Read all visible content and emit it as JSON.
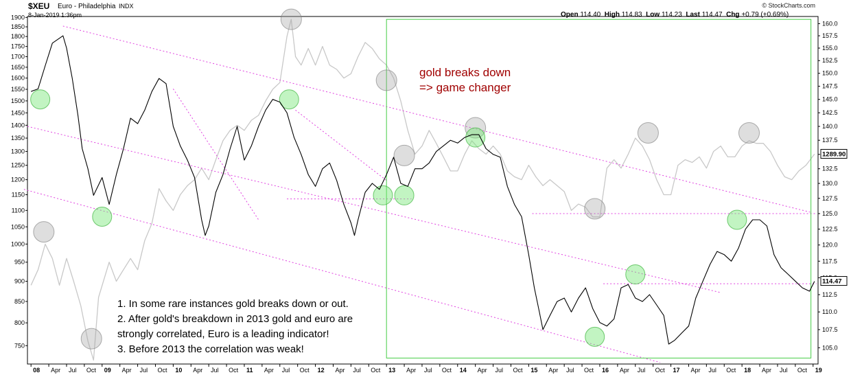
{
  "header": {
    "symbol": "$XEU",
    "name": "Euro - Philadelphia",
    "exchange": "INDX",
    "datetime": "8-Jan-2019 1:36pm",
    "open_label": "Open",
    "open": "114.40",
    "high_label": "High",
    "high": "114.83",
    "low_label": "Low",
    "low": "114.23",
    "last_label": "Last",
    "last": "114.47",
    "chg_label": "Chg",
    "chg": "+0.79 (+0.69%)",
    "copyright": "© StockCharts.com"
  },
  "annotations": {
    "title_line1": "gold breaks down",
    "title_line2": "=> game changer",
    "note1": "1. In some rare instances gold breaks down or out.",
    "note2": "2. After gold's breakdown in 2013 gold and euro are",
    "note3": "strongly correlated, Euro is a leading indicator!",
    "note4": "3. Before 2013 the correlation was weak!"
  },
  "chart_data": {
    "type": "line",
    "x_tick_labels": [
      "08",
      "Apr",
      "Jul",
      "Oct",
      "09",
      "Apr",
      "Jul",
      "Oct",
      "10",
      "Apr",
      "Jul",
      "Oct",
      "11",
      "Apr",
      "Jul",
      "Oct",
      "12",
      "Apr",
      "Jul",
      "Oct",
      "13",
      "Apr",
      "Jul",
      "Oct",
      "14",
      "Apr",
      "Jul",
      "Oct",
      "15",
      "Apr",
      "Jul",
      "Oct",
      "16",
      "Apr",
      "Jul",
      "Oct",
      "17",
      "Apr",
      "Jul",
      "Oct",
      "18",
      "Apr",
      "Jul",
      "Oct",
      "19"
    ],
    "x_tick_values": [
      2008.0,
      2008.25,
      2008.5,
      2008.75,
      2009.0,
      2009.25,
      2009.5,
      2009.75,
      2010.0,
      2010.25,
      2010.5,
      2010.75,
      2011.0,
      2011.25,
      2011.5,
      2011.75,
      2012.0,
      2012.25,
      2012.5,
      2012.75,
      2013.0,
      2013.25,
      2013.5,
      2013.75,
      2014.0,
      2014.25,
      2014.5,
      2014.75,
      2015.0,
      2015.25,
      2015.5,
      2015.75,
      2016.0,
      2016.25,
      2016.5,
      2016.75,
      2017.0,
      2017.25,
      2017.5,
      2017.75,
      2018.0,
      2018.25,
      2018.5,
      2018.75,
      2019.0
    ],
    "xlim": [
      2007.95,
      2019.07
    ],
    "left_axis": {
      "label": "",
      "ticks": [
        750,
        800,
        850,
        900,
        950,
        1000,
        1050,
        1100,
        1150,
        1200,
        1250,
        1300,
        1350,
        1400,
        1450,
        1500,
        1550,
        1600,
        1650,
        1700,
        1750,
        1800,
        1850,
        1900
      ],
      "ylim": [
        712,
        1905
      ],
      "scale": "log"
    },
    "right_axis": {
      "label": "",
      "ticks": [
        "105.0",
        "107.5",
        "110.0",
        "112.5",
        "115.0",
        "117.5",
        "120.0",
        "122.5",
        "125.0",
        "127.5",
        "130.0",
        "132.5",
        "135.0",
        "137.5",
        "140.0",
        "142.5",
        "145.0",
        "147.5",
        "150.0",
        "152.5",
        "155.0",
        "157.5",
        "160.0"
      ],
      "ylim": [
        102.8,
        161.5
      ],
      "last_value": "114.47",
      "gold_last_value": "1289.90"
    },
    "series": [
      {
        "color": "#000000",
        "axis": "right",
        "x": [
          2008.0,
          2008.1,
          2008.2,
          2008.3,
          2008.45,
          2008.5,
          2008.58,
          2008.66,
          2008.72,
          2008.8,
          2008.88,
          2009.0,
          2009.1,
          2009.2,
          2009.3,
          2009.4,
          2009.5,
          2009.6,
          2009.7,
          2009.8,
          2009.9,
          2010.0,
          2010.1,
          2010.2,
          2010.3,
          2010.4,
          2010.45,
          2010.5,
          2010.6,
          2010.7,
          2010.8,
          2010.9,
          2011.0,
          2011.1,
          2011.2,
          2011.3,
          2011.4,
          2011.5,
          2011.6,
          2011.7,
          2011.8,
          2011.9,
          2012.0,
          2012.1,
          2012.2,
          2012.3,
          2012.4,
          2012.5,
          2012.55,
          2012.6,
          2012.7,
          2012.8,
          2012.9,
          2013.0,
          2013.1,
          2013.2,
          2013.3,
          2013.4,
          2013.5,
          2013.6,
          2013.7,
          2013.8,
          2013.9,
          2014.0,
          2014.1,
          2014.2,
          2014.3,
          2014.4,
          2014.5,
          2014.6,
          2014.7,
          2014.8,
          2014.9,
          2015.0,
          2015.08,
          2015.15,
          2015.2,
          2015.3,
          2015.4,
          2015.5,
          2015.6,
          2015.7,
          2015.8,
          2015.9,
          2016.0,
          2016.1,
          2016.2,
          2016.3,
          2016.4,
          2016.5,
          2016.6,
          2016.7,
          2016.8,
          2016.9,
          2016.97,
          2017.05,
          2017.15,
          2017.25,
          2017.35,
          2017.45,
          2017.55,
          2017.65,
          2017.75,
          2017.85,
          2017.95,
          2018.05,
          2018.15,
          2018.25,
          2018.35,
          2018.45,
          2018.55,
          2018.65,
          2018.75,
          2018.85,
          2018.95,
          2019.02
        ],
        "values": [
          146.5,
          147.0,
          151.5,
          156.0,
          157.5,
          155.0,
          149.0,
          142.0,
          136.0,
          132.5,
          128.0,
          131.0,
          126.5,
          131.5,
          136.0,
          141.5,
          140.5,
          143.0,
          146.5,
          149.0,
          148.0,
          140.0,
          136.5,
          134.0,
          131.0,
          124.0,
          121.5,
          123.0,
          128.5,
          131.5,
          136.0,
          140.0,
          134.0,
          136.5,
          140.0,
          143.0,
          145.0,
          144.5,
          142.5,
          138.0,
          135.0,
          131.5,
          129.5,
          132.5,
          133.5,
          130.5,
          126.5,
          123.5,
          121.5,
          124.0,
          128.5,
          130.0,
          129.0,
          131.5,
          134.5,
          130.0,
          129.5,
          132.5,
          132.5,
          133.5,
          135.5,
          136.5,
          137.5,
          137.0,
          138.0,
          138.5,
          138.5,
          136.0,
          135.0,
          134.5,
          129.5,
          126.5,
          124.5,
          118.5,
          113.5,
          110.0,
          107.5,
          109.5,
          111.5,
          112.0,
          110.0,
          112.0,
          113.5,
          110.5,
          108.5,
          108.0,
          109.0,
          113.5,
          114.0,
          112.0,
          111.5,
          112.5,
          111.0,
          109.5,
          105.5,
          106.0,
          107.0,
          108.0,
          112.0,
          114.5,
          117.0,
          119.0,
          118.5,
          117.5,
          119.5,
          122.5,
          124.0,
          124.0,
          123.0,
          118.5,
          116.5,
          115.5,
          114.5,
          113.5,
          113.0,
          114.47
        ]
      },
      {
        "color": "#c8c8c8",
        "axis": "left",
        "x": [
          2008.0,
          2008.1,
          2008.2,
          2008.3,
          2008.4,
          2008.5,
          2008.6,
          2008.7,
          2008.8,
          2008.88,
          2008.95,
          2009.1,
          2009.2,
          2009.3,
          2009.4,
          2009.5,
          2009.6,
          2009.7,
          2009.8,
          2009.9,
          2010.0,
          2010.1,
          2010.2,
          2010.3,
          2010.4,
          2010.5,
          2010.6,
          2010.7,
          2010.8,
          2010.9,
          2011.0,
          2011.1,
          2011.2,
          2011.3,
          2011.4,
          2011.5,
          2011.6,
          2011.66,
          2011.72,
          2011.8,
          2011.9,
          2012.0,
          2012.1,
          2012.2,
          2012.3,
          2012.4,
          2012.5,
          2012.6,
          2012.7,
          2012.8,
          2012.9,
          2013.0,
          2013.1,
          2013.2,
          2013.3,
          2013.4,
          2013.5,
          2013.6,
          2013.7,
          2013.8,
          2013.9,
          2014.0,
          2014.1,
          2014.2,
          2014.3,
          2014.4,
          2014.5,
          2014.6,
          2014.7,
          2014.8,
          2014.9,
          2015.0,
          2015.1,
          2015.2,
          2015.3,
          2015.4,
          2015.5,
          2015.6,
          2015.7,
          2015.8,
          2015.9,
          2016.0,
          2016.1,
          2016.2,
          2016.3,
          2016.4,
          2016.5,
          2016.6,
          2016.7,
          2016.8,
          2016.9,
          2017.0,
          2017.1,
          2017.2,
          2017.3,
          2017.4,
          2017.5,
          2017.6,
          2017.7,
          2017.8,
          2017.9,
          2018.0,
          2018.1,
          2018.2,
          2018.3,
          2018.4,
          2018.5,
          2018.6,
          2018.7,
          2018.8,
          2018.9,
          2019.02
        ],
        "values": [
          890,
          930,
          1000,
          960,
          890,
          960,
          900,
          840,
          760,
          720,
          860,
          950,
          900,
          930,
          960,
          930,
          1010,
          1060,
          1170,
          1130,
          1100,
          1150,
          1180,
          1200,
          1240,
          1200,
          1270,
          1340,
          1380,
          1400,
          1380,
          1420,
          1440,
          1500,
          1550,
          1580,
          1800,
          1890,
          1700,
          1660,
          1740,
          1660,
          1750,
          1660,
          1640,
          1600,
          1620,
          1700,
          1770,
          1740,
          1690,
          1660,
          1600,
          1500,
          1380,
          1290,
          1320,
          1380,
          1330,
          1280,
          1230,
          1230,
          1290,
          1340,
          1310,
          1290,
          1320,
          1290,
          1230,
          1210,
          1200,
          1250,
          1210,
          1180,
          1200,
          1180,
          1160,
          1100,
          1120,
          1110,
          1080,
          1080,
          1240,
          1270,
          1240,
          1290,
          1350,
          1320,
          1270,
          1200,
          1150,
          1150,
          1250,
          1270,
          1260,
          1280,
          1240,
          1300,
          1320,
          1280,
          1280,
          1320,
          1340,
          1330,
          1330,
          1300,
          1250,
          1210,
          1200,
          1230,
          1250,
          1290
        ]
      }
    ],
    "gray_markers": [
      {
        "x": 2008.18,
        "axis": "left",
        "y": 1035
      },
      {
        "x": 2008.85,
        "axis": "left",
        "y": 765
      },
      {
        "x": 2011.66,
        "axis": "left",
        "y": 1890
      },
      {
        "x": 2013.0,
        "axis": "left",
        "y": 1590
      },
      {
        "x": 2013.25,
        "axis": "left",
        "y": 1285
      },
      {
        "x": 2014.25,
        "axis": "left",
        "y": 1390
      },
      {
        "x": 2015.93,
        "axis": "left",
        "y": 1105
      },
      {
        "x": 2016.68,
        "axis": "left",
        "y": 1370
      },
      {
        "x": 2018.1,
        "axis": "left",
        "y": 1370
      }
    ],
    "green_markers": [
      {
        "x": 2008.13,
        "axis": "right",
        "y": 145.0
      },
      {
        "x": 2009.0,
        "axis": "right",
        "y": 124.5
      },
      {
        "x": 2011.63,
        "axis": "right",
        "y": 145.0
      },
      {
        "x": 2012.95,
        "axis": "right",
        "y": 128.0
      },
      {
        "x": 2013.25,
        "axis": "right",
        "y": 128.0
      },
      {
        "x": 2014.25,
        "axis": "right",
        "y": 138.0
      },
      {
        "x": 2015.93,
        "axis": "right",
        "y": 106.5
      },
      {
        "x": 2016.5,
        "axis": "right",
        "y": 115.5
      },
      {
        "x": 2017.93,
        "axis": "right",
        "y": 124.0
      }
    ],
    "trendlines": [
      {
        "color": "#e040e0",
        "axis": "right",
        "x": [
          2008.45,
          2018.97
        ],
        "y": [
          159.5,
          125.2
        ]
      },
      {
        "color": "#e040e0",
        "axis": "right",
        "x": [
          2007.95,
          2017.7
        ],
        "y": [
          140.0,
          112.8
        ]
      },
      {
        "color": "#e040e0",
        "axis": "right",
        "x": [
          2007.9,
          2016.85
        ],
        "y": [
          129.0,
          103.0
        ]
      },
      {
        "color": "#e040e0",
        "axis": "right",
        "x": [
          2010.0,
          2011.2
        ],
        "y": [
          147.0,
          124.0
        ]
      },
      {
        "color": "#e040e0",
        "axis": "right",
        "x": [
          2011.72,
          2013.0
        ],
        "y": [
          143.0,
          130.5
        ]
      },
      {
        "color": "#e040e0",
        "axis": "right",
        "x": [
          2011.6,
          2013.35
        ],
        "y": [
          127.4,
          127.4
        ]
      },
      {
        "color": "#e040e0",
        "axis": "right",
        "x": [
          2015.05,
          2019.05
        ],
        "y": [
          125.0,
          125.0
        ]
      },
      {
        "color": "#e040e0",
        "axis": "right",
        "x": [
          2016.05,
          2019.05
        ],
        "y": [
          114.1,
          114.1
        ]
      }
    ],
    "highlight_box": {
      "color": "#44cc44",
      "axis": "right",
      "x": [
        2013.0,
        2018.97
      ],
      "y": [
        103.6,
        160.9
      ]
    },
    "grid": false,
    "legend": "none"
  },
  "colors": {
    "euro": "#000000",
    "gold": "#c8c8c8",
    "trend": "#e040e0",
    "box": "#44cc44",
    "annotation_red": "#a00000"
  }
}
